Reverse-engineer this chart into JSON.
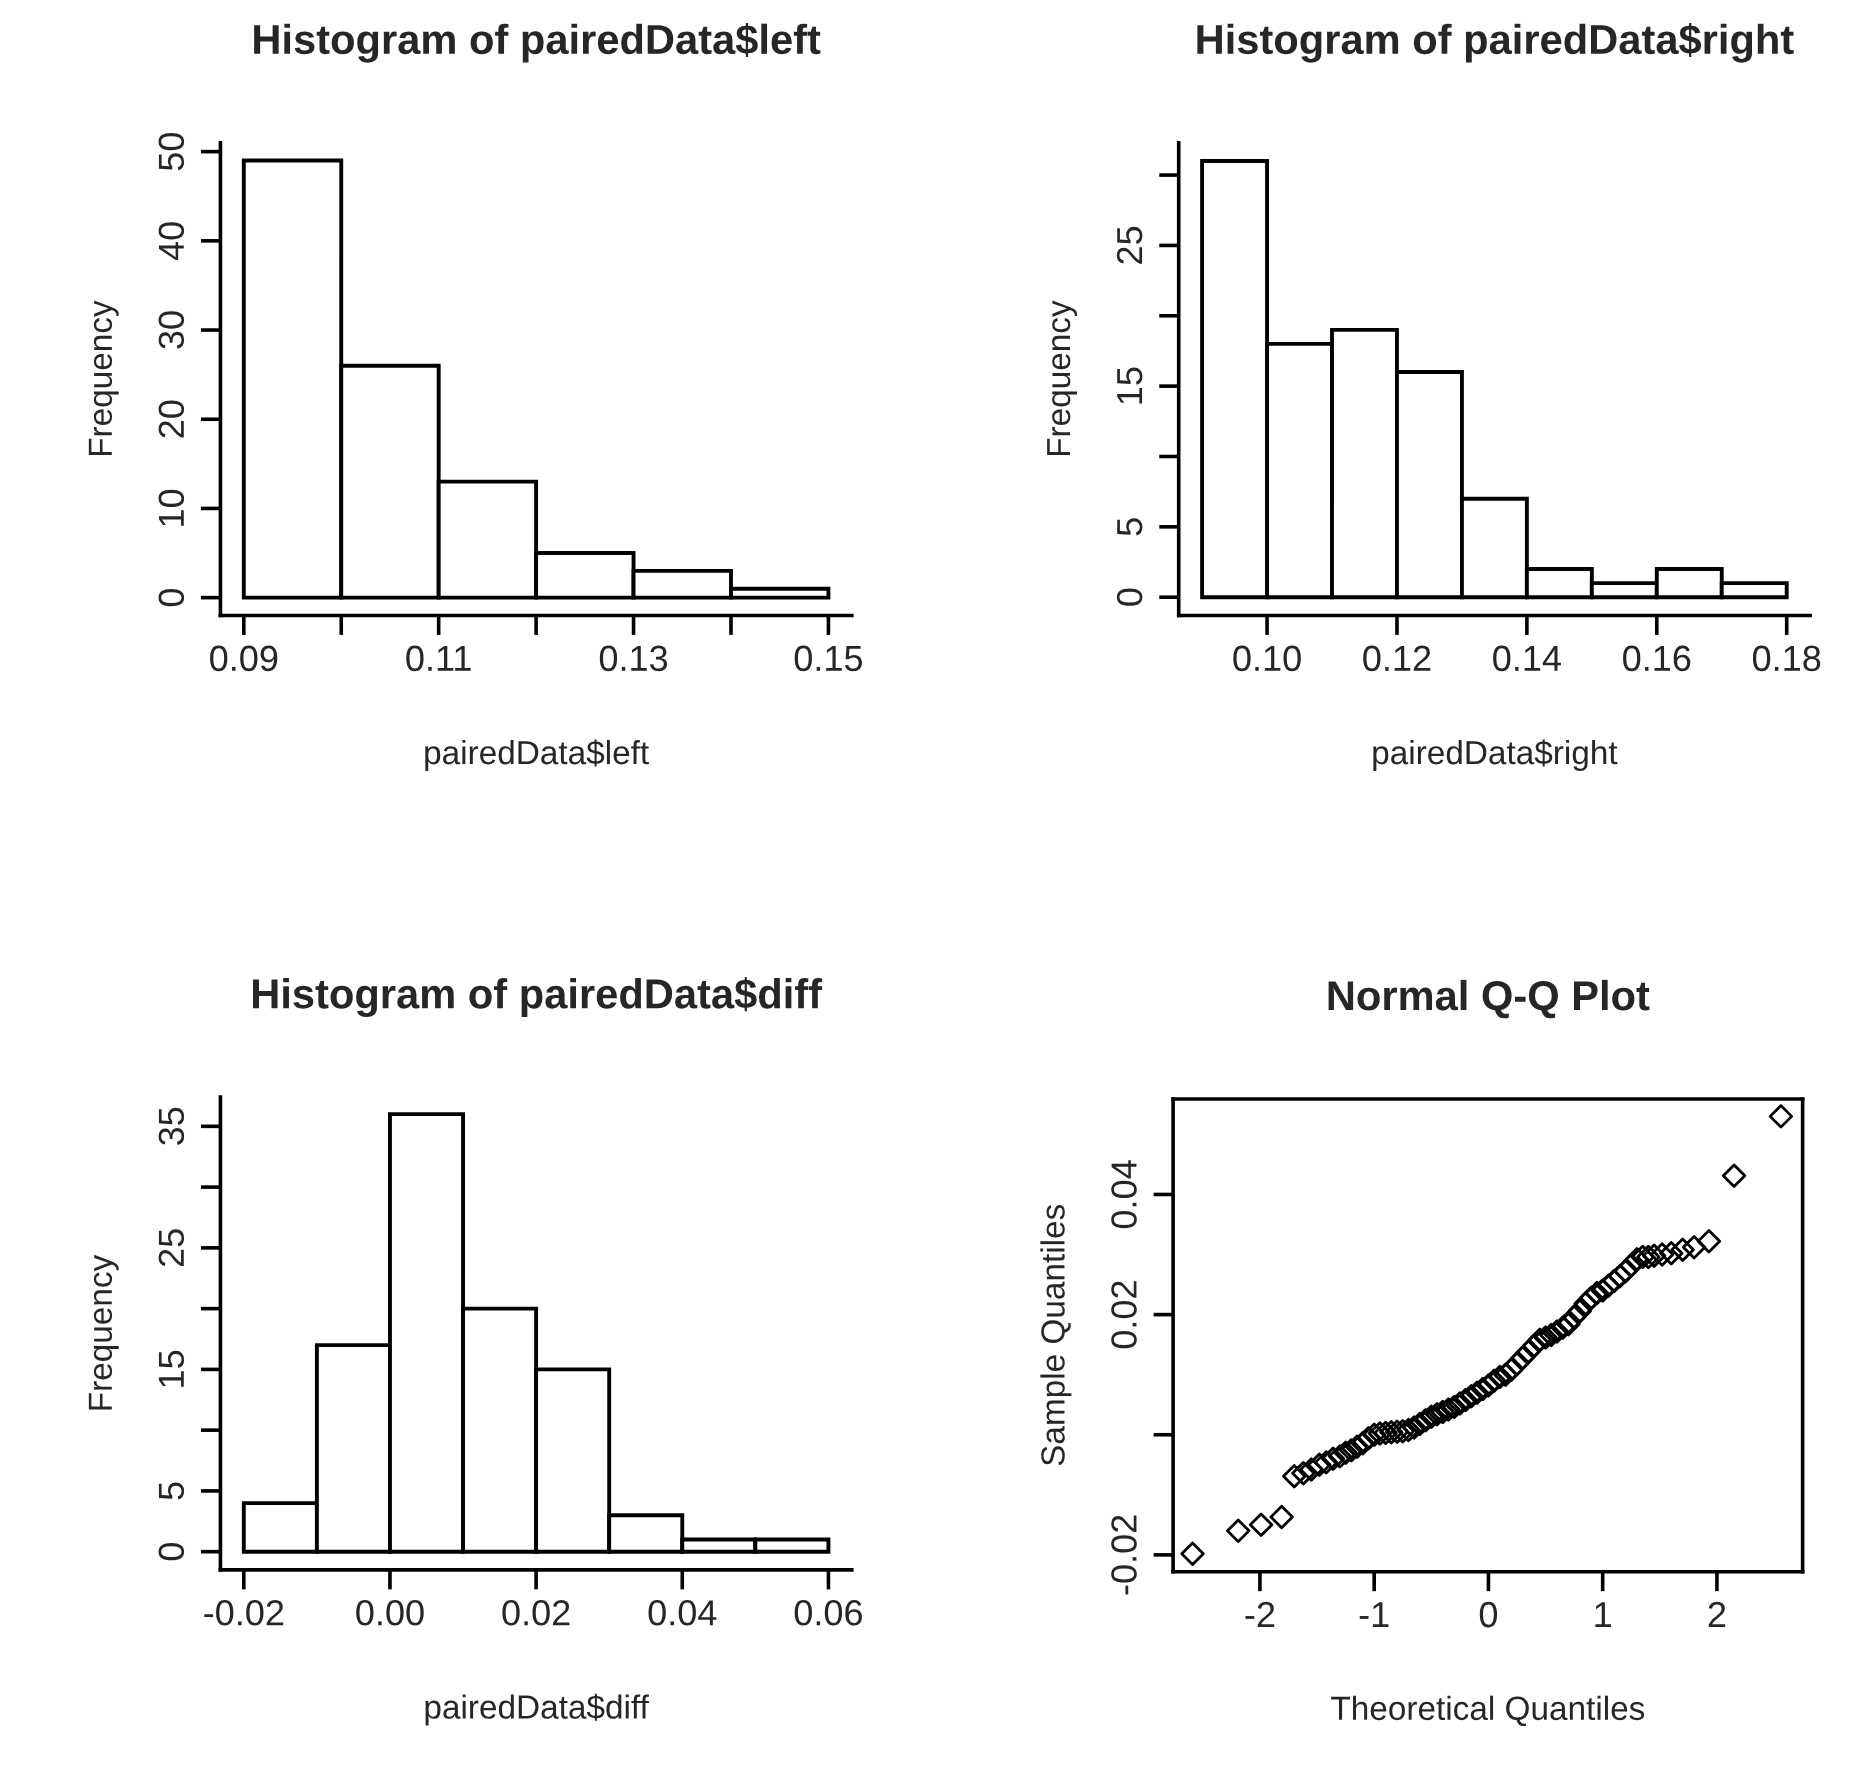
{
  "chart_data": [
    {
      "type": "histogram",
      "title": "Histogram of pairedData$left",
      "xlabel": "pairedData$left",
      "ylabel": "Frequency",
      "bins": [
        0.09,
        0.1,
        0.11,
        0.12,
        0.13,
        0.14,
        0.15
      ],
      "values": [
        49,
        26,
        13,
        5,
        3,
        1
      ],
      "xlim": [
        0.0876,
        0.1524
      ],
      "ylim": [
        -2,
        51
      ],
      "xticks": [
        {
          "value": 0.09,
          "label": "0.09"
        },
        {
          "value": 0.1,
          "label": null
        },
        {
          "value": 0.11,
          "label": "0.11"
        },
        {
          "value": 0.12,
          "label": null
        },
        {
          "value": 0.13,
          "label": "0.13"
        },
        {
          "value": 0.14,
          "label": null
        },
        {
          "value": 0.15,
          "label": "0.15"
        }
      ],
      "yticks": [
        0,
        10,
        20,
        30,
        40,
        50
      ],
      "grid": false
    },
    {
      "type": "histogram",
      "title": "Histogram of pairedData$right",
      "xlabel": "pairedData$right",
      "ylabel": "Frequency",
      "bins": [
        0.09,
        0.1,
        0.11,
        0.12,
        0.13,
        0.14,
        0.15,
        0.16,
        0.17,
        0.18
      ],
      "values": [
        31,
        18,
        19,
        16,
        7,
        2,
        1,
        2,
        1
      ],
      "xlim": [
        0.0864,
        0.1836
      ],
      "ylim": [
        -1.3,
        32.3
      ],
      "xticks": [
        {
          "value": 0.1,
          "label": "0.10"
        },
        {
          "value": 0.12,
          "label": "0.12"
        },
        {
          "value": 0.14,
          "label": "0.14"
        },
        {
          "value": 0.16,
          "label": "0.16"
        },
        {
          "value": 0.18,
          "label": "0.18"
        }
      ],
      "yticks": [
        0,
        5,
        {
          "value": 10,
          "label": null
        },
        15,
        {
          "value": 20,
          "label": null
        },
        25,
        {
          "value": 30,
          "label": null
        }
      ],
      "grid": false
    },
    {
      "type": "histogram",
      "title": "Histogram of pairedData$diff",
      "xlabel": "pairedData$diff",
      "ylabel": "Frequency",
      "bins": [
        -0.02,
        -0.01,
        0.0,
        0.01,
        0.02,
        0.03,
        0.04,
        0.05,
        0.06
      ],
      "values": [
        4,
        17,
        36,
        20,
        15,
        3,
        1,
        1
      ],
      "xlim": [
        -0.0232,
        0.0632
      ],
      "ylim": [
        -1.5,
        37.4
      ],
      "xticks": [
        {
          "value": -0.02,
          "label": "-0.02"
        },
        {
          "value": 0.0,
          "label": "0.00"
        },
        {
          "value": 0.02,
          "label": "0.02"
        },
        {
          "value": 0.04,
          "label": "0.04"
        },
        {
          "value": 0.06,
          "label": "0.06"
        }
      ],
      "yticks": [
        0,
        5,
        {
          "value": 10,
          "label": null
        },
        15,
        {
          "value": 20,
          "label": null
        },
        25,
        {
          "value": 30,
          "label": null
        },
        35
      ],
      "grid": false
    },
    {
      "type": "scatter",
      "title": "Normal Q-Q Plot",
      "xlabel": "Theoretical Quantiles",
      "ylabel": "Sample Quantiles",
      "marker": "diamond",
      "grid": false,
      "xlim": [
        -2.76,
        2.75
      ],
      "ylim": [
        -0.0228,
        0.0559
      ],
      "xticks": [
        -2,
        -1,
        0,
        1,
        2
      ],
      "yticks": [
        -0.02,
        {
          "value": 0,
          "label": null
        },
        0.02,
        0.04
      ],
      "x": [
        -2.59,
        -2.19,
        -1.99,
        -1.81,
        -1.7,
        -1.62,
        -1.55,
        -1.48,
        -1.42,
        -1.36,
        -1.3,
        -1.25,
        -1.2,
        -1.15,
        -1.1,
        -1.05,
        -1.0,
        -0.95,
        -0.9,
        -0.85,
        -0.8,
        -0.75,
        -0.7,
        -0.65,
        -0.6,
        -0.55,
        -0.5,
        -0.45,
        -0.4,
        -0.35,
        -0.3,
        -0.25,
        -0.2,
        -0.15,
        -0.1,
        -0.05,
        0.0,
        0.05,
        0.1,
        0.15,
        0.2,
        0.25,
        0.3,
        0.35,
        0.4,
        0.45,
        0.5,
        0.55,
        0.6,
        0.65,
        0.7,
        0.75,
        0.8,
        0.85,
        0.9,
        0.95,
        1.0,
        1.05,
        1.1,
        1.15,
        1.2,
        1.25,
        1.3,
        1.35,
        1.4,
        1.45,
        1.52,
        1.6,
        1.7,
        1.8,
        1.93,
        2.15,
        2.56
      ],
      "values": [
        -0.0198,
        -0.016,
        -0.015,
        -0.0137,
        -0.0069,
        -0.0064,
        -0.0058,
        -0.005,
        -0.0046,
        -0.004,
        -0.0036,
        -0.003,
        -0.0026,
        -0.002,
        -0.0014,
        -0.0006,
        0.0,
        0.0002,
        0.0003,
        0.0004,
        0.0005,
        0.0006,
        0.0008,
        0.0012,
        0.0018,
        0.0024,
        0.003,
        0.0034,
        0.0038,
        0.0042,
        0.0046,
        0.0052,
        0.0058,
        0.0064,
        0.007,
        0.0076,
        0.0082,
        0.009,
        0.0096,
        0.01,
        0.0108,
        0.0118,
        0.0128,
        0.0138,
        0.0148,
        0.0158,
        0.0162,
        0.0166,
        0.0172,
        0.0178,
        0.0184,
        0.0196,
        0.0206,
        0.0218,
        0.0228,
        0.0236,
        0.024,
        0.0248,
        0.0256,
        0.0264,
        0.0272,
        0.0282,
        0.0292,
        0.0296,
        0.0296,
        0.0298,
        0.03,
        0.0302,
        0.0308,
        0.0312,
        0.0322,
        0.0431,
        0.053
      ]
    }
  ]
}
